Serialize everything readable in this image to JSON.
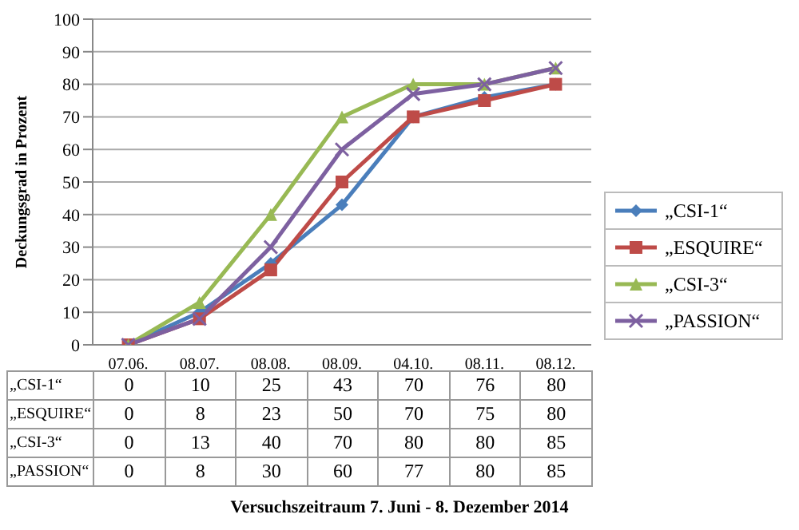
{
  "chart_data": {
    "type": "line",
    "ylabel": "Deckungsgrad in Prozent",
    "categories": [
      "07.06.",
      "08.07.",
      "08.08.",
      "08.09.",
      "04.10.",
      "08.11.",
      "08.12."
    ],
    "series": [
      {
        "name": "„CSI-1“",
        "color": "#4a7ebb",
        "marker": "diamond",
        "values": [
          0,
          10,
          25,
          43,
          70,
          76,
          80
        ]
      },
      {
        "name": "„ESQUIRE“",
        "color": "#be4b48",
        "marker": "square",
        "values": [
          0,
          8,
          23,
          50,
          70,
          75,
          80
        ]
      },
      {
        "name": "„CSI-3“",
        "color": "#98b954",
        "marker": "triangle",
        "values": [
          0,
          13,
          40,
          70,
          80,
          80,
          85
        ]
      },
      {
        "name": "„PASSION“",
        "color": "#7d60a0",
        "marker": "cross",
        "values": [
          0,
          8,
          30,
          60,
          77,
          80,
          85
        ]
      }
    ],
    "ylim": [
      0,
      100
    ],
    "yticks": [
      0,
      10,
      20,
      30,
      40,
      50,
      60,
      70,
      80,
      90,
      100
    ],
    "grid": "y",
    "legend": "right",
    "data_labels": true,
    "annotations": [
      "Versuchszeitraum 7. Juni - 8. Dezember 2014"
    ]
  }
}
